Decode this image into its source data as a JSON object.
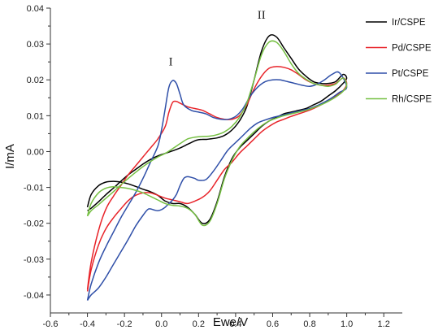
{
  "chart_data": {
    "type": "line",
    "xlabel": "Ewe/V",
    "ylabel": "I/mA",
    "xlim": [
      -0.6,
      1.3
    ],
    "ylim": [
      -0.045,
      0.04
    ],
    "xticks": [
      -0.6,
      -0.4,
      -0.2,
      0.0,
      0.2,
      0.4,
      0.6,
      0.8,
      1.0,
      1.2
    ],
    "xtick_labels": [
      "-0.6",
      "-0.4",
      "-0.2",
      "0.0",
      "0.2",
      "0.4",
      "0.6",
      "0.8",
      "1.0",
      "1.2"
    ],
    "yticks": [
      -0.04,
      -0.03,
      -0.02,
      -0.01,
      0.0,
      0.01,
      0.02,
      0.03,
      0.04
    ],
    "ytick_labels": [
      "-0.04",
      "-0.03",
      "-0.02",
      "-0.01",
      "0.00",
      "0.01",
      "0.02",
      "0.03",
      "0.04"
    ],
    "grid": false,
    "legend_position": "top-right",
    "annotations": [
      {
        "text": "I",
        "x": 0.05,
        "y": 0.024
      },
      {
        "text": "II",
        "x": 0.54,
        "y": 0.037
      }
    ],
    "series": [
      {
        "name": "Ir/CSPE",
        "color": "#000000",
        "x": [
          -0.4,
          -0.38,
          -0.34,
          -0.3,
          -0.26,
          -0.22,
          -0.18,
          -0.14,
          -0.1,
          -0.06,
          -0.02,
          0.02,
          0.06,
          0.1,
          0.14,
          0.18,
          0.22,
          0.26,
          0.3,
          0.34,
          0.38,
          0.42,
          0.46,
          0.5,
          0.54,
          0.58,
          0.62,
          0.66,
          0.7,
          0.74,
          0.78,
          0.82,
          0.86,
          0.9,
          0.94,
          0.98,
          1.0,
          0.98,
          0.94,
          0.9,
          0.86,
          0.82,
          0.78,
          0.74,
          0.7,
          0.66,
          0.62,
          0.58,
          0.54,
          0.5,
          0.46,
          0.42,
          0.38,
          0.34,
          0.3,
          0.26,
          0.24,
          0.22,
          0.2,
          0.18,
          0.14,
          0.1,
          0.06,
          0.02,
          -0.02,
          -0.06,
          -0.1,
          -0.14,
          -0.18,
          -0.22,
          -0.26,
          -0.3,
          -0.34,
          -0.38,
          -0.4
        ],
        "y": [
          -0.0155,
          -0.012,
          -0.0095,
          -0.0085,
          -0.0083,
          -0.0085,
          -0.009,
          -0.0097,
          -0.0105,
          -0.0112,
          -0.0122,
          -0.0138,
          -0.0145,
          -0.0145,
          -0.0155,
          -0.0175,
          -0.02,
          -0.019,
          -0.014,
          -0.007,
          -0.002,
          0.001,
          0.003,
          0.005,
          0.007,
          0.0085,
          0.0095,
          0.0105,
          0.011,
          0.0115,
          0.012,
          0.013,
          0.014,
          0.0155,
          0.017,
          0.019,
          0.0205,
          0.0215,
          0.0195,
          0.019,
          0.019,
          0.0195,
          0.021,
          0.023,
          0.026,
          0.029,
          0.032,
          0.0322,
          0.028,
          0.02,
          0.0125,
          0.0085,
          0.006,
          0.0045,
          0.0038,
          0.0035,
          0.0034,
          0.0034,
          0.0033,
          0.003,
          0.002,
          0.001,
          0.0002,
          -0.0005,
          -0.0012,
          -0.0022,
          -0.0035,
          -0.005,
          -0.0065,
          -0.0083,
          -0.0102,
          -0.012,
          -0.014,
          -0.0158,
          -0.0165
        ]
      },
      {
        "name": "Pd/CSPE",
        "color": "#e8242a",
        "x": [
          -0.4,
          -0.38,
          -0.34,
          -0.3,
          -0.26,
          -0.22,
          -0.18,
          -0.14,
          -0.1,
          -0.06,
          -0.02,
          0.02,
          0.06,
          0.1,
          0.14,
          0.18,
          0.22,
          0.26,
          0.3,
          0.34,
          0.38,
          0.42,
          0.46,
          0.5,
          0.54,
          0.58,
          0.62,
          0.66,
          0.7,
          0.74,
          0.78,
          0.82,
          0.86,
          0.9,
          0.94,
          0.98,
          1.0,
          0.98,
          0.94,
          0.9,
          0.86,
          0.82,
          0.78,
          0.74,
          0.7,
          0.66,
          0.62,
          0.58,
          0.54,
          0.5,
          0.46,
          0.42,
          0.38,
          0.34,
          0.3,
          0.26,
          0.22,
          0.18,
          0.14,
          0.1,
          0.08,
          0.06,
          0.04,
          0.02,
          -0.02,
          -0.06,
          -0.1,
          -0.14,
          -0.18,
          -0.22,
          -0.26,
          -0.3,
          -0.34,
          -0.38,
          -0.4
        ],
        "y": [
          -0.039,
          -0.033,
          -0.026,
          -0.0215,
          -0.0185,
          -0.016,
          -0.0137,
          -0.0122,
          -0.0115,
          -0.0115,
          -0.0122,
          -0.013,
          -0.0135,
          -0.014,
          -0.0145,
          -0.0138,
          -0.0128,
          -0.011,
          -0.008,
          -0.005,
          -0.003,
          -0.0005,
          0.0015,
          0.0035,
          0.0055,
          0.007,
          0.0082,
          0.009,
          0.0098,
          0.0105,
          0.0112,
          0.012,
          0.013,
          0.0142,
          0.0155,
          0.017,
          0.019,
          0.0205,
          0.019,
          0.0185,
          0.0185,
          0.019,
          0.02,
          0.0215,
          0.0228,
          0.0235,
          0.0237,
          0.0232,
          0.021,
          0.0175,
          0.013,
          0.01,
          0.009,
          0.009,
          0.0095,
          0.0105,
          0.0115,
          0.012,
          0.0125,
          0.0135,
          0.014,
          0.0137,
          0.011,
          0.007,
          0.0035,
          0.001,
          -0.0015,
          -0.004,
          -0.0065,
          -0.0095,
          -0.0125,
          -0.016,
          -0.022,
          -0.031,
          -0.0385
        ]
      },
      {
        "name": "Pt/CSPE",
        "color": "#2f4fa8",
        "x": [
          -0.4,
          -0.38,
          -0.34,
          -0.3,
          -0.26,
          -0.22,
          -0.18,
          -0.14,
          -0.1,
          -0.07,
          -0.04,
          -0.02,
          0.0,
          0.02,
          0.04,
          0.06,
          0.08,
          0.1,
          0.12,
          0.14,
          0.16,
          0.18,
          0.2,
          0.24,
          0.28,
          0.32,
          0.36,
          0.4,
          0.44,
          0.48,
          0.52,
          0.56,
          0.6,
          0.64,
          0.68,
          0.72,
          0.76,
          0.8,
          0.84,
          0.88,
          0.92,
          0.96,
          1.0,
          0.96,
          0.92,
          0.88,
          0.84,
          0.8,
          0.76,
          0.72,
          0.68,
          0.64,
          0.6,
          0.56,
          0.52,
          0.48,
          0.44,
          0.4,
          0.36,
          0.32,
          0.28,
          0.24,
          0.2,
          0.16,
          0.12,
          0.1,
          0.08,
          0.06,
          0.04,
          0.02,
          0.0,
          -0.02,
          -0.06,
          -0.1,
          -0.14,
          -0.18,
          -0.22,
          -0.26,
          -0.3,
          -0.34,
          -0.38,
          -0.4
        ],
        "y": [
          -0.0415,
          -0.04,
          -0.038,
          -0.035,
          -0.0315,
          -0.028,
          -0.0245,
          -0.0208,
          -0.0178,
          -0.016,
          -0.0163,
          -0.0165,
          -0.0162,
          -0.0155,
          -0.0145,
          -0.0135,
          -0.012,
          -0.0095,
          -0.0075,
          -0.007,
          -0.0072,
          -0.0075,
          -0.008,
          -0.0078,
          -0.0055,
          -0.0025,
          0.0005,
          0.0025,
          0.0045,
          0.0065,
          0.008,
          0.0088,
          0.0095,
          0.01,
          0.0105,
          0.011,
          0.0115,
          0.012,
          0.0128,
          0.0138,
          0.015,
          0.0165,
          0.018,
          0.022,
          0.0215,
          0.02,
          0.0188,
          0.0182,
          0.0185,
          0.019,
          0.0195,
          0.02,
          0.02,
          0.0195,
          0.018,
          0.0155,
          0.012,
          0.0098,
          0.009,
          0.009,
          0.0095,
          0.0105,
          0.011,
          0.0115,
          0.013,
          0.016,
          0.019,
          0.0198,
          0.018,
          0.012,
          0.006,
          0.0015,
          -0.003,
          -0.0075,
          -0.0115,
          -0.015,
          -0.0185,
          -0.0225,
          -0.0265,
          -0.031,
          -0.037,
          -0.0415
        ]
      },
      {
        "name": "Rh/CSPE",
        "color": "#76c043",
        "x": [
          -0.4,
          -0.38,
          -0.34,
          -0.3,
          -0.26,
          -0.22,
          -0.18,
          -0.14,
          -0.1,
          -0.06,
          -0.02,
          0.02,
          0.06,
          0.1,
          0.14,
          0.18,
          0.22,
          0.26,
          0.3,
          0.34,
          0.38,
          0.42,
          0.46,
          0.5,
          0.54,
          0.58,
          0.62,
          0.66,
          0.7,
          0.74,
          0.78,
          0.82,
          0.86,
          0.9,
          0.94,
          0.98,
          1.0,
          0.98,
          0.94,
          0.9,
          0.86,
          0.82,
          0.78,
          0.74,
          0.7,
          0.66,
          0.62,
          0.58,
          0.54,
          0.5,
          0.46,
          0.42,
          0.38,
          0.34,
          0.3,
          0.26,
          0.22,
          0.18,
          0.14,
          0.1,
          0.06,
          0.02,
          -0.02,
          -0.06,
          -0.1,
          -0.14,
          -0.18,
          -0.22,
          -0.26,
          -0.3,
          -0.34,
          -0.38,
          -0.4
        ],
        "y": [
          -0.018,
          -0.0145,
          -0.0115,
          -0.0102,
          -0.0098,
          -0.01,
          -0.0103,
          -0.0108,
          -0.0115,
          -0.0125,
          -0.0135,
          -0.0145,
          -0.015,
          -0.0152,
          -0.0158,
          -0.0175,
          -0.0205,
          -0.0195,
          -0.0145,
          -0.0075,
          -0.0025,
          0.0012,
          0.0035,
          0.0055,
          0.0072,
          0.0085,
          0.0093,
          0.01,
          0.0105,
          0.011,
          0.0115,
          0.0122,
          0.013,
          0.014,
          0.0152,
          0.0168,
          0.0185,
          0.0205,
          0.0188,
          0.0182,
          0.0185,
          0.019,
          0.0202,
          0.0218,
          0.0245,
          0.028,
          0.0305,
          0.0305,
          0.027,
          0.02,
          0.0135,
          0.0095,
          0.007,
          0.0055,
          0.0047,
          0.0043,
          0.0042,
          0.004,
          0.0035,
          0.0022,
          0.0008,
          -0.0005,
          -0.0015,
          -0.0028,
          -0.0042,
          -0.0058,
          -0.0075,
          -0.0093,
          -0.0112,
          -0.013,
          -0.0148,
          -0.0165,
          -0.018
        ]
      }
    ]
  }
}
